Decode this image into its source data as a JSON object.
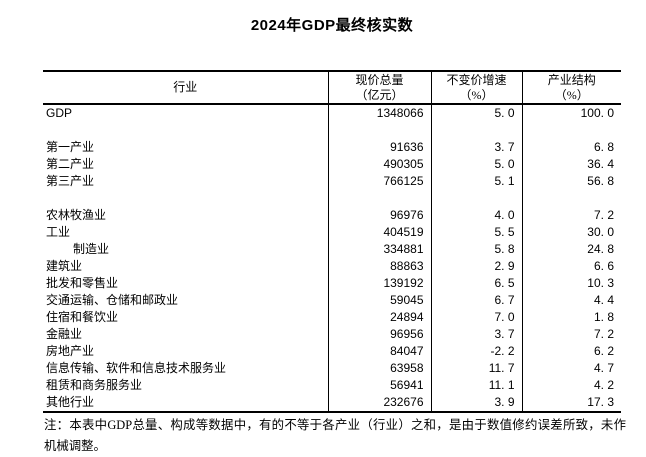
{
  "title": "2024年GDP最终核实数",
  "colors": {
    "text": "#000000",
    "background": "#ffffff",
    "border": "#000000"
  },
  "table": {
    "headers": [
      {
        "line1": "行业",
        "line2": ""
      },
      {
        "line1": "现价总量",
        "line2": "（亿元）"
      },
      {
        "line1": "不变价增速",
        "line2": "（%）"
      },
      {
        "line1": "产业结构",
        "line2": "（%）"
      }
    ],
    "rows": [
      {
        "industry": "GDP",
        "indent": 0,
        "current_price_total": "1348066",
        "constant_price_growth": "5. 0",
        "industry_structure": "100. 0"
      },
      {
        "blank": true
      },
      {
        "industry": "第一产业",
        "indent": 0,
        "current_price_total": "91636",
        "constant_price_growth": "3. 7",
        "industry_structure": "6. 8"
      },
      {
        "industry": "第二产业",
        "indent": 0,
        "current_price_total": "490305",
        "constant_price_growth": "5. 0",
        "industry_structure": "36. 4"
      },
      {
        "industry": "第三产业",
        "indent": 0,
        "current_price_total": "766125",
        "constant_price_growth": "5. 1",
        "industry_structure": "56. 8"
      },
      {
        "blank": true
      },
      {
        "industry": "农林牧渔业",
        "indent": 0,
        "current_price_total": "96976",
        "constant_price_growth": "4. 0",
        "industry_structure": "7. 2"
      },
      {
        "industry": "工业",
        "indent": 0,
        "current_price_total": "404519",
        "constant_price_growth": "5. 5",
        "industry_structure": "30. 0"
      },
      {
        "industry": "制造业",
        "indent": 1,
        "current_price_total": "334881",
        "constant_price_growth": "5. 8",
        "industry_structure": "24. 8"
      },
      {
        "industry": "建筑业",
        "indent": 0,
        "current_price_total": "88863",
        "constant_price_growth": "2. 9",
        "industry_structure": "6. 6"
      },
      {
        "industry": "批发和零售业",
        "indent": 0,
        "current_price_total": "139192",
        "constant_price_growth": "6. 5",
        "industry_structure": "10. 3"
      },
      {
        "industry": "交通运输、仓储和邮政业",
        "indent": 0,
        "current_price_total": "59045",
        "constant_price_growth": "6. 7",
        "industry_structure": "4. 4"
      },
      {
        "industry": "住宿和餐饮业",
        "indent": 0,
        "current_price_total": "24894",
        "constant_price_growth": "7. 0",
        "industry_structure": "1. 8"
      },
      {
        "industry": "金融业",
        "indent": 0,
        "current_price_total": "96956",
        "constant_price_growth": "3. 7",
        "industry_structure": "7. 2"
      },
      {
        "industry": "房地产业",
        "indent": 0,
        "current_price_total": "84047",
        "constant_price_growth": "-2. 2",
        "industry_structure": "6. 2"
      },
      {
        "industry": "信息传输、软件和信息技术服务业",
        "indent": 0,
        "current_price_total": "63958",
        "constant_price_growth": "11. 7",
        "industry_structure": "4. 7"
      },
      {
        "industry": "租赁和商务服务业",
        "indent": 0,
        "current_price_total": "56941",
        "constant_price_growth": "11. 1",
        "industry_structure": "4. 2"
      },
      {
        "industry": "其他行业",
        "indent": 0,
        "current_price_total": "232676",
        "constant_price_growth": "3. 9",
        "industry_structure": "17. 3"
      }
    ]
  },
  "note": "注：本表中GDP总量、构成等数据中，有的不等于各产业（行业）之和，是由于数值修约误差所致，未作机械调整。",
  "chart_data": {
    "type": "table",
    "title": "2024年GDP最终核实数",
    "columns": [
      "行业",
      "现价总量（亿元）",
      "不变价增速（%）",
      "产业结构（%）"
    ],
    "categories": [
      "GDP",
      "第一产业",
      "第二产业",
      "第三产业",
      "农林牧渔业",
      "工业",
      "制造业",
      "建筑业",
      "批发和零售业",
      "交通运输、仓储和邮政业",
      "住宿和餐饮业",
      "金融业",
      "房地产业",
      "信息传输、软件和信息技术服务业",
      "租赁和商务服务业",
      "其他行业"
    ],
    "series": [
      {
        "name": "现价总量（亿元）",
        "values": [
          1348066,
          91636,
          490305,
          766125,
          96976,
          404519,
          334881,
          88863,
          139192,
          59045,
          24894,
          96956,
          84047,
          63958,
          56941,
          232676
        ]
      },
      {
        "name": "不变价增速（%）",
        "values": [
          5.0,
          3.7,
          5.0,
          5.1,
          4.0,
          5.5,
          5.8,
          2.9,
          6.5,
          6.7,
          7.0,
          3.7,
          -2.2,
          11.7,
          11.1,
          3.9
        ]
      },
      {
        "name": "产业结构（%）",
        "values": [
          100.0,
          6.8,
          36.4,
          56.8,
          7.2,
          30.0,
          24.8,
          6.6,
          10.3,
          4.4,
          1.8,
          7.2,
          6.2,
          4.7,
          4.2,
          17.3
        ]
      }
    ]
  }
}
